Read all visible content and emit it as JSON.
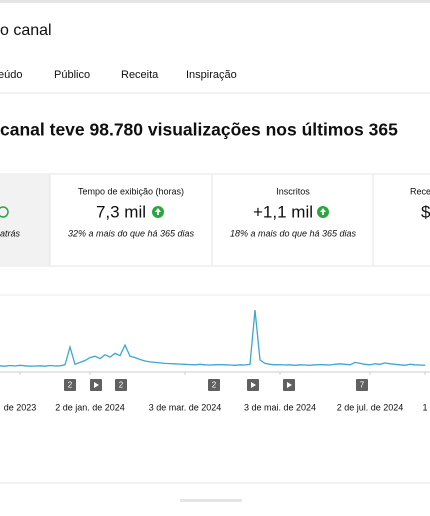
{
  "header": {
    "title": "o canal"
  },
  "tabs": [
    "eúdo",
    "Público",
    "Receita",
    "Inspiração"
  ],
  "headline": "canal teve 98.780 visualizações nos últimos 365",
  "cards": [
    {
      "note": "atrás"
    },
    {
      "label": "Tempo de exibição (horas)",
      "value": "7,3 mil",
      "note": "32% a mais do que há 365 dias"
    },
    {
      "label": "Inscritos",
      "value": "+1,1 mil",
      "note": "18% a mais do que há 365 dias"
    },
    {
      "label": "Rece",
      "value": "$"
    }
  ],
  "chart_data": {
    "type": "line",
    "color": "#3ea6d1",
    "values": [
      130,
      120,
      135,
      125,
      140,
      130,
      120,
      125,
      130,
      120,
      135,
      125,
      130,
      150,
      520,
      160,
      200,
      240,
      300,
      330,
      280,
      360,
      310,
      390,
      340,
      560,
      330,
      300,
      260,
      230,
      210,
      200,
      190,
      180,
      175,
      170,
      165,
      160,
      155,
      150,
      160,
      150,
      145,
      150,
      155,
      150,
      145,
      140,
      150,
      145,
      160,
      1290,
      250,
      180,
      160,
      150,
      155,
      145,
      150,
      140,
      150,
      145,
      140,
      150,
      155,
      150,
      145,
      160,
      170,
      160,
      150,
      200,
      180,
      160,
      150,
      170,
      160,
      190,
      170,
      160,
      150,
      140,
      160,
      150,
      145,
      140
    ],
    "xlim": [
      0,
      85
    ],
    "ylim": [
      0,
      1500
    ],
    "xticks": [
      {
        "value": 4,
        "label": "de 2023"
      },
      {
        "value": 18,
        "label": "2 de jan. de 2024"
      },
      {
        "value": 37,
        "label": "3 de mar. de 2024"
      },
      {
        "value": 56,
        "label": "3 de mai. de 2024"
      },
      {
        "value": 74,
        "label": "2 de jul. de 2024"
      },
      {
        "value": 85,
        "label": "1"
      }
    ],
    "annotations": [
      "2",
      "2",
      "2",
      "7"
    ]
  }
}
